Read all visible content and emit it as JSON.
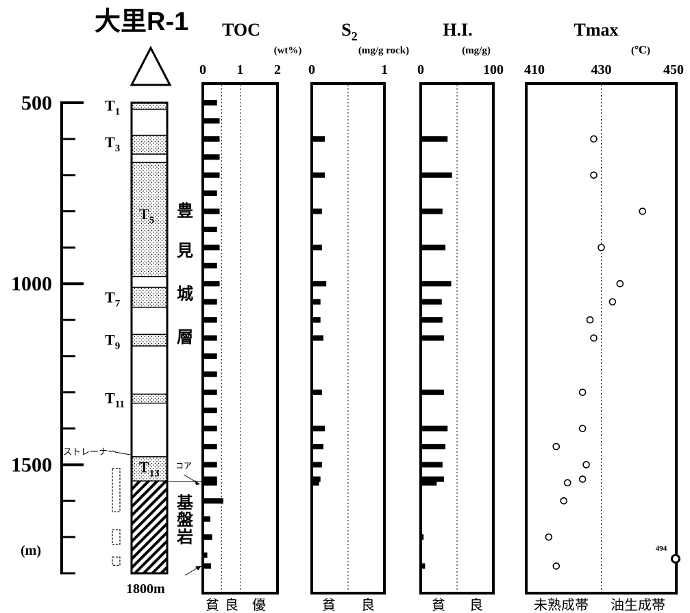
{
  "well": {
    "name": "大里R-1",
    "td_label": "1800m",
    "strainer_label": "ストレーナー",
    "core_label": "コア"
  },
  "depth_axis": {
    "ticks": [
      "500",
      "1000",
      "1500"
    ],
    "unit": "(m)",
    "range": [
      500,
      1800
    ]
  },
  "formations": {
    "toyomi": [
      "豊",
      "見",
      "城",
      "層"
    ],
    "basement": [
      "基",
      "盤",
      "岩"
    ]
  },
  "tuff_beds": [
    {
      "label": "T",
      "sub": "1",
      "top": 500,
      "bottom": 518,
      "label_depth": 510
    },
    {
      "label": "T",
      "sub": "3",
      "top": 590,
      "bottom": 642,
      "label_depth": 612
    },
    {
      "label": "T",
      "sub": "5",
      "top": 665,
      "bottom": 980,
      "label_depth": 810
    },
    {
      "label": "T",
      "sub": "7",
      "top": 1010,
      "bottom": 1065,
      "label_depth": 1040
    },
    {
      "label": "T",
      "sub": "9",
      "top": 1140,
      "bottom": 1172,
      "label_depth": 1158
    },
    {
      "label": "T",
      "sub": "11",
      "top": 1305,
      "bottom": 1330,
      "label_depth": 1318
    },
    {
      "label": "T",
      "sub": "13",
      "top": 1478,
      "bottom": 1545,
      "label_depth": 1510
    }
  ],
  "basement_top": 1545,
  "strainer_intervals": [
    [
      1510,
      1630
    ],
    [
      1680,
      1720
    ],
    [
      1755,
      1778
    ]
  ],
  "chart_data": [
    {
      "type": "bar",
      "title": "TOC",
      "unit": "(wt%)",
      "xlim": [
        0,
        2
      ],
      "ticks": [
        "0",
        "1",
        "2"
      ],
      "reference_lines": [
        0.5,
        1
      ],
      "bottom_labels": [
        "貧",
        "良",
        "優"
      ],
      "depths": [
        500,
        550,
        600,
        650,
        700,
        750,
        800,
        850,
        900,
        950,
        1000,
        1050,
        1100,
        1150,
        1200,
        1250,
        1300,
        1350,
        1400,
        1450,
        1500,
        1540,
        1550,
        1600,
        1650,
        1700,
        1750,
        1780
      ],
      "values": [
        0.38,
        0.45,
        0.45,
        0.45,
        0.45,
        0.38,
        0.45,
        0.38,
        0.45,
        0.38,
        0.45,
        0.38,
        0.38,
        0.38,
        0.38,
        0.38,
        0.38,
        0.38,
        0.38,
        0.38,
        0.38,
        0.38,
        0.38,
        0.55,
        0.2,
        0.25,
        0.12,
        0.22
      ]
    },
    {
      "type": "bar",
      "title": "S",
      "title_sub": "2",
      "unit": "(mg/g rock)",
      "xlim": [
        0,
        1
      ],
      "ticks": [
        "0",
        "1"
      ],
      "reference_lines": [
        0.5
      ],
      "bottom_labels": [
        "貧",
        "良"
      ],
      "depths": [
        600,
        700,
        800,
        900,
        1000,
        1050,
        1100,
        1150,
        1300,
        1400,
        1450,
        1500,
        1540,
        1550
      ],
      "values": [
        0.18,
        0.18,
        0.14,
        0.14,
        0.2,
        0.12,
        0.12,
        0.16,
        0.14,
        0.18,
        0.16,
        0.14,
        0.12,
        0.1
      ]
    },
    {
      "type": "bar",
      "title": "H.I.",
      "unit": "(mg/g)",
      "xlim": [
        0,
        100
      ],
      "ticks": [
        "0",
        "100"
      ],
      "reference_lines": [
        50
      ],
      "bottom_labels": [
        "貧",
        "良"
      ],
      "depths": [
        600,
        700,
        800,
        900,
        1000,
        1050,
        1100,
        1150,
        1300,
        1400,
        1450,
        1500,
        1540,
        1550,
        1700,
        1780
      ],
      "values": [
        37,
        43,
        30,
        34,
        42,
        29,
        30,
        32,
        32,
        37,
        34,
        30,
        32,
        22,
        4,
        6
      ]
    },
    {
      "type": "scatter",
      "title": "Tmax",
      "unit": "(℃)",
      "xlim": [
        410,
        450
      ],
      "ticks": [
        "410",
        "430",
        "450"
      ],
      "reference_lines": [
        430
      ],
      "bottom_labels": [
        "未熟成帯",
        "油生成帯"
      ],
      "depths": [
        600,
        700,
        800,
        900,
        1000,
        1050,
        1100,
        1150,
        1300,
        1400,
        1450,
        1500,
        1540,
        1550,
        1600,
        1700,
        1780
      ],
      "values": [
        428,
        428,
        441,
        430,
        435,
        433,
        427,
        428,
        425,
        425,
        418,
        426,
        425,
        421,
        420,
        416,
        418
      ],
      "off_scale": {
        "value_label": "494",
        "depth": 1760
      }
    }
  ]
}
